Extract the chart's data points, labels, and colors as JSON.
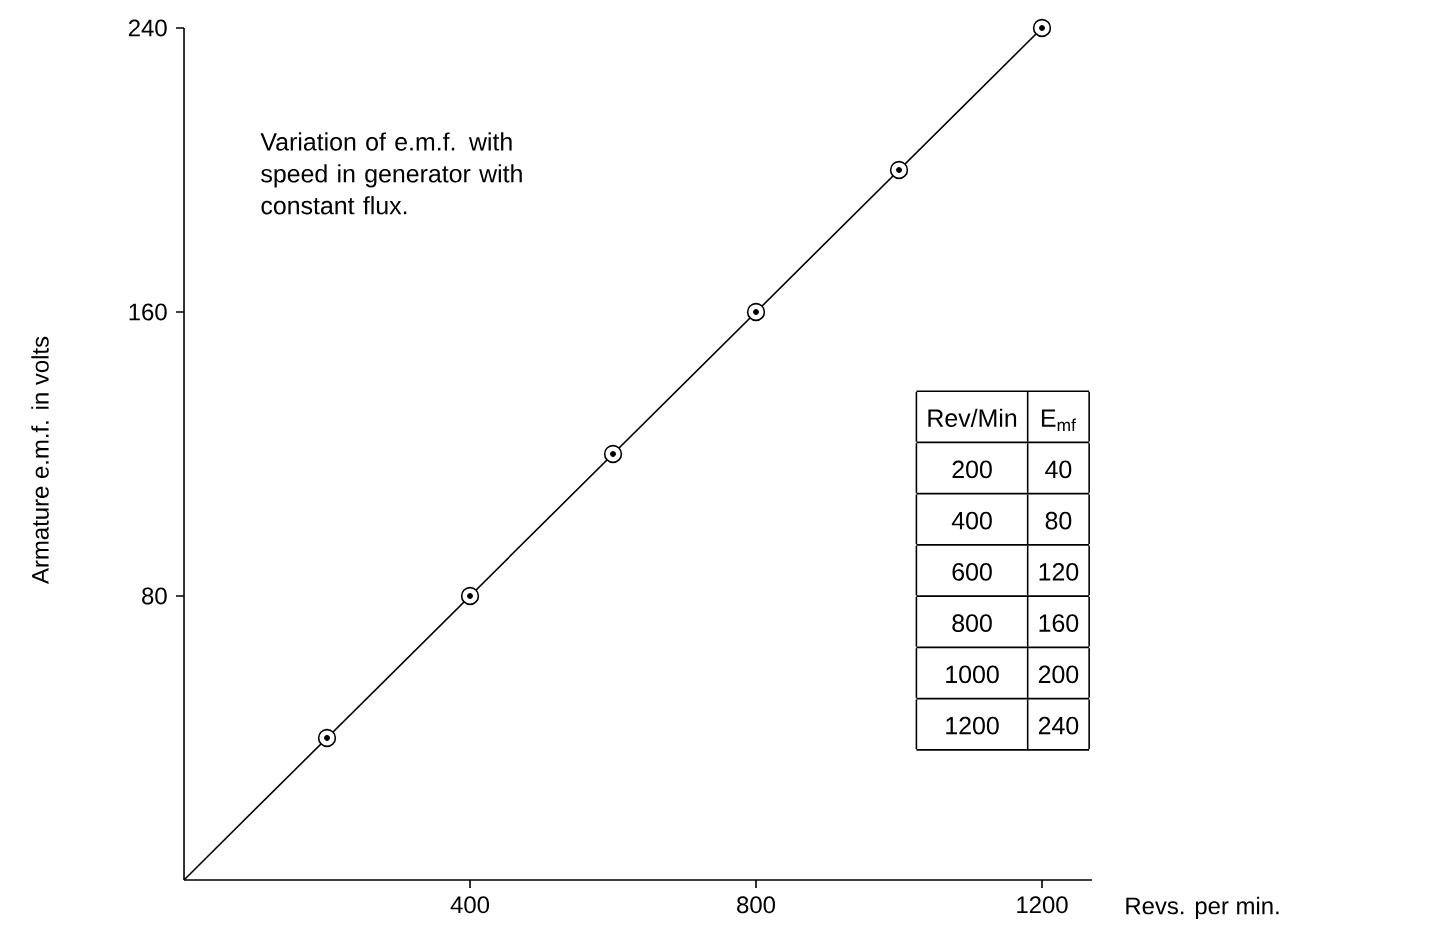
{
  "chart_data": {
    "type": "scatter",
    "xlabel": "Revs. per min.",
    "ylabel": "Armature e.m.f. in volts",
    "annotations": [
      "Variation of e.m.f. with speed in generator with constant flux.",
      "Rev/Min",
      "E$_{mf}$",
      "200",
      "40",
      "400",
      "80",
      "600",
      "120",
      "800",
      "160",
      "1000",
      "200",
      "1200",
      "240"
    ],
    "x": [
      200,
      400,
      600,
      800,
      1000,
      1200
    ],
    "series": [
      {
        "color": "#000000",
        "values": [
          40,
          80,
          120,
          160,
          200,
          240
        ]
      },
      {
        "type": "line",
        "color": "#000000",
        "x": [
          0,
          1200
        ],
        "values": [
          0,
          240
        ]
      }
    ],
    "xlim": [
      0,
      1270
    ],
    "ylim": [
      0,
      240
    ],
    "xticks": [
      400,
      800,
      1200
    ],
    "yticks": [
      80,
      160,
      240
    ],
    "marker": "circle"
  }
}
